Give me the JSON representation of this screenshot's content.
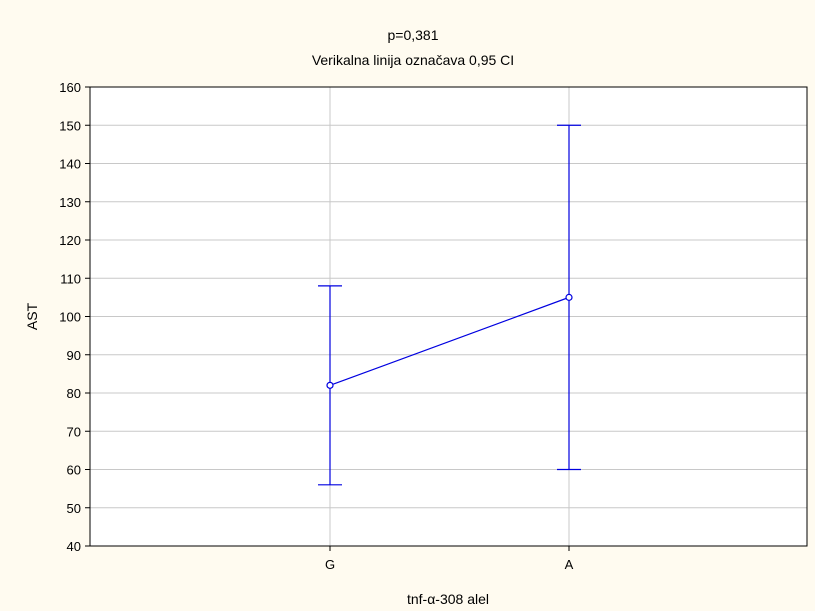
{
  "chart_data": {
    "type": "line",
    "title": "p=0,381",
    "subtitle": "Verikalna linija označava 0,95 CI",
    "xlabel": "tnf-α-308 alel",
    "ylabel": "AST",
    "categories": [
      "G",
      "A"
    ],
    "series": [
      {
        "values": [
          82,
          105
        ],
        "ci_lower": [
          56,
          60
        ],
        "ci_upper": [
          108,
          150
        ]
      }
    ],
    "ylim": [
      40,
      160
    ],
    "yticks": [
      40,
      50,
      60,
      70,
      80,
      90,
      100,
      110,
      120,
      130,
      140,
      150,
      160
    ],
    "grid": true,
    "colors": {
      "series": "#0000e0",
      "grid": "#c8c8c8",
      "background": "#fffbf0",
      "plot": "#ffffff"
    }
  }
}
